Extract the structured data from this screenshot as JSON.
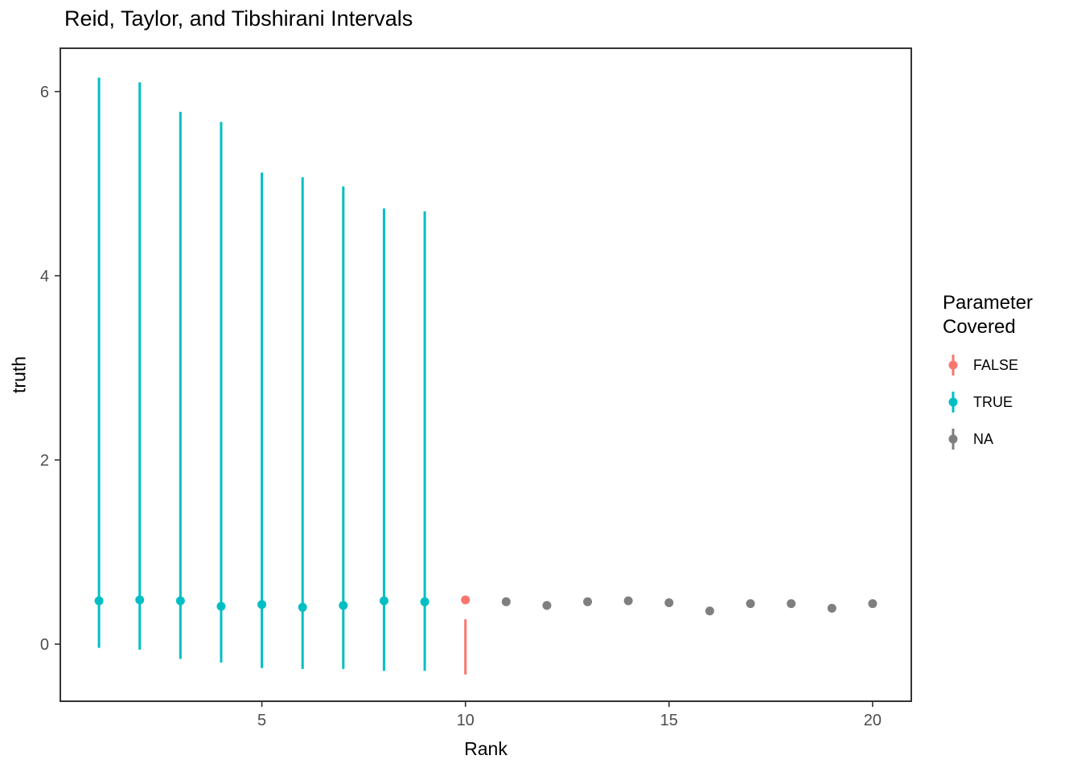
{
  "chart_data": {
    "type": "pointrange",
    "title": "Reid, Taylor, and Tibshirani Intervals",
    "xlabel": "Rank",
    "ylabel": "truth",
    "xlim": [
      0.05,
      20.95
    ],
    "ylim": [
      -0.62,
      6.47
    ],
    "x_ticks": [
      5,
      10,
      15,
      20
    ],
    "y_ticks": [
      0,
      2,
      4,
      6
    ],
    "grid": false,
    "panel_border_color": "#333333",
    "tick_color": "#333333",
    "tick_label_color": "#4d4d4d",
    "legend": {
      "title": "Parameter\nCovered",
      "position": "right",
      "entries": [
        {
          "label": "FALSE",
          "color": "#F8766D"
        },
        {
          "label": "TRUE",
          "color": "#00BFC4"
        },
        {
          "label": "NA",
          "color": "#7F7F7F"
        }
      ]
    },
    "points": [
      {
        "rank": 1,
        "truth": 0.47,
        "lower": -0.04,
        "upper": 6.15,
        "covered": "TRUE"
      },
      {
        "rank": 2,
        "truth": 0.48,
        "lower": -0.06,
        "upper": 6.1,
        "covered": "TRUE"
      },
      {
        "rank": 3,
        "truth": 0.47,
        "lower": -0.16,
        "upper": 5.78,
        "covered": "TRUE"
      },
      {
        "rank": 4,
        "truth": 0.41,
        "lower": -0.2,
        "upper": 5.67,
        "covered": "TRUE"
      },
      {
        "rank": 5,
        "truth": 0.43,
        "lower": -0.26,
        "upper": 5.12,
        "covered": "TRUE"
      },
      {
        "rank": 6,
        "truth": 0.4,
        "lower": -0.27,
        "upper": 5.07,
        "covered": "TRUE"
      },
      {
        "rank": 7,
        "truth": 0.42,
        "lower": -0.27,
        "upper": 4.97,
        "covered": "TRUE"
      },
      {
        "rank": 8,
        "truth": 0.47,
        "lower": -0.29,
        "upper": 4.73,
        "covered": "TRUE"
      },
      {
        "rank": 9,
        "truth": 0.46,
        "lower": -0.29,
        "upper": 4.7,
        "covered": "TRUE"
      },
      {
        "rank": 10,
        "truth": 0.48,
        "lower": -0.33,
        "upper": 0.27,
        "covered": "FALSE"
      },
      {
        "rank": 11,
        "truth": 0.46,
        "lower": null,
        "upper": null,
        "covered": "NA"
      },
      {
        "rank": 12,
        "truth": 0.42,
        "lower": null,
        "upper": null,
        "covered": "NA"
      },
      {
        "rank": 13,
        "truth": 0.46,
        "lower": null,
        "upper": null,
        "covered": "NA"
      },
      {
        "rank": 14,
        "truth": 0.47,
        "lower": null,
        "upper": null,
        "covered": "NA"
      },
      {
        "rank": 15,
        "truth": 0.45,
        "lower": null,
        "upper": null,
        "covered": "NA"
      },
      {
        "rank": 16,
        "truth": 0.36,
        "lower": null,
        "upper": null,
        "covered": "NA"
      },
      {
        "rank": 17,
        "truth": 0.44,
        "lower": null,
        "upper": null,
        "covered": "NA"
      },
      {
        "rank": 18,
        "truth": 0.44,
        "lower": null,
        "upper": null,
        "covered": "NA"
      },
      {
        "rank": 19,
        "truth": 0.39,
        "lower": null,
        "upper": null,
        "covered": "NA"
      },
      {
        "rank": 20,
        "truth": 0.44,
        "lower": null,
        "upper": null,
        "covered": "NA"
      }
    ]
  }
}
